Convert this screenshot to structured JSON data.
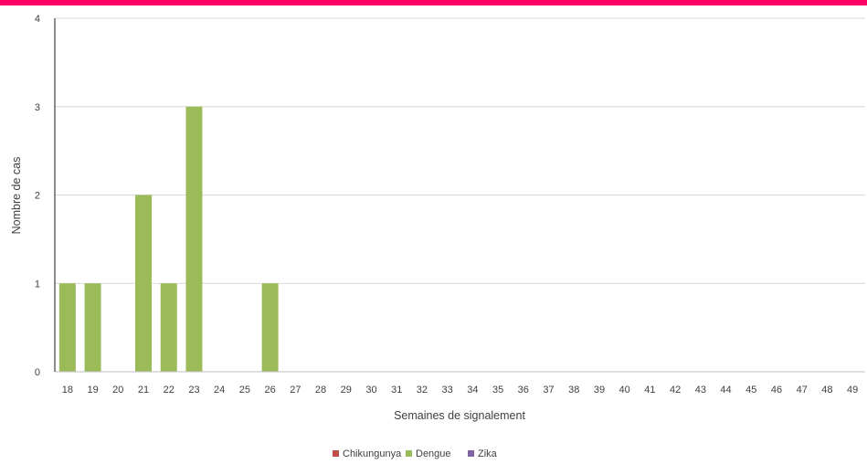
{
  "header": {
    "accent_color": "#ff0066"
  },
  "chart_data": {
    "type": "bar",
    "xlabel": "Semaines de signalement",
    "ylabel": "Nombre de cas",
    "ylim": [
      0,
      4
    ],
    "yticks": [
      "0",
      "1",
      "2",
      "3",
      "4"
    ],
    "grid": true,
    "legend_position": "bottom",
    "categories": [
      "18",
      "19",
      "20",
      "21",
      "22",
      "23",
      "24",
      "25",
      "26",
      "27",
      "28",
      "29",
      "30",
      "31",
      "32",
      "33",
      "34",
      "35",
      "36",
      "37",
      "38",
      "39",
      "40",
      "41",
      "42",
      "43",
      "44",
      "45",
      "46",
      "47",
      "48",
      "49"
    ],
    "series": [
      {
        "name": "Chikungunya",
        "color": "#c0504d",
        "values": [
          0,
          0,
          0,
          0,
          0,
          0,
          0,
          0,
          0,
          0,
          0,
          0,
          0,
          0,
          0,
          0,
          0,
          0,
          0,
          0,
          0,
          0,
          0,
          0,
          0,
          0,
          0,
          0,
          0,
          0,
          0,
          0
        ]
      },
      {
        "name": "Dengue",
        "color": "#9bbb59",
        "values": [
          1,
          1,
          0,
          2,
          1,
          3,
          0,
          0,
          1,
          0,
          0,
          0,
          0,
          0,
          0,
          0,
          0,
          0,
          0,
          0,
          0,
          0,
          0,
          0,
          0,
          0,
          0,
          0,
          0,
          0,
          0,
          0
        ]
      },
      {
        "name": "Zika",
        "color": "#8064a2",
        "values": [
          0,
          0,
          0,
          0,
          0,
          0,
          0,
          0,
          0,
          0,
          0,
          0,
          0,
          0,
          0,
          0,
          0,
          0,
          0,
          0,
          0,
          0,
          0,
          0,
          0,
          0,
          0,
          0,
          0,
          0,
          0,
          0
        ]
      }
    ]
  }
}
